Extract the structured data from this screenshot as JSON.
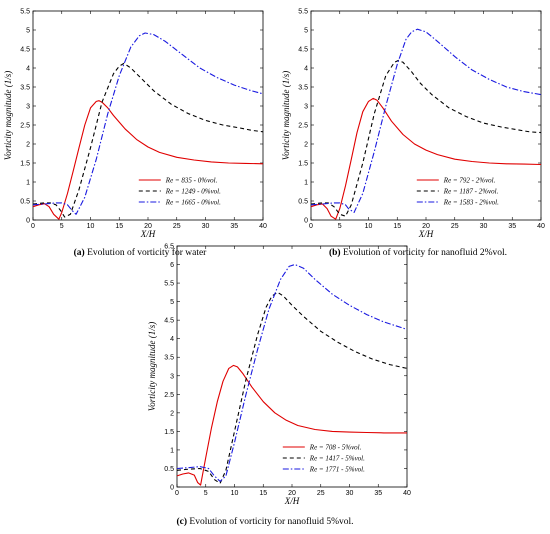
{
  "chart_data": [
    {
      "type": "line",
      "panel_label": "(a)",
      "caption": "Evolution of vorticity for water",
      "xlabel": "X/H",
      "ylabel": "Vorticity magnitude (1/s)",
      "xlim": [
        0,
        40
      ],
      "ylim": [
        0,
        5.5
      ],
      "xticks": [
        0,
        5,
        10,
        15,
        20,
        25,
        30,
        35,
        40
      ],
      "yticks": [
        0,
        0.5,
        1,
        1.5,
        2,
        2.5,
        3,
        3.5,
        4,
        4.5,
        5,
        5.5
      ],
      "legend_position": "lower-right",
      "series": [
        {
          "name": "Re = 835 - 0%vol.",
          "color": "#e00000",
          "dash": "solid",
          "x": [
            0,
            1,
            2,
            2.8,
            3.6,
            4.5,
            5,
            6,
            7,
            8,
            9,
            10,
            11,
            11.5,
            12,
            13,
            14,
            16,
            18,
            20,
            22,
            25,
            28,
            31,
            34,
            37,
            40
          ],
          "y": [
            0.35,
            0.4,
            0.43,
            0.35,
            0.15,
            0.02,
            0.2,
            0.7,
            1.3,
            1.9,
            2.5,
            2.95,
            3.12,
            3.14,
            3.1,
            2.95,
            2.75,
            2.4,
            2.12,
            1.92,
            1.78,
            1.65,
            1.58,
            1.53,
            1.5,
            1.49,
            1.48
          ]
        },
        {
          "name": "Re = 1249 - 0%vol.",
          "color": "#000000",
          "dash": "dashed",
          "x": [
            0,
            2,
            3,
            4,
            4.8,
            5.5,
            6.5,
            8,
            10,
            12,
            14,
            15,
            15.8,
            17,
            19,
            21,
            24,
            27,
            30,
            33,
            36,
            38,
            40
          ],
          "y": [
            0.42,
            0.45,
            0.45,
            0.4,
            0.25,
            0.08,
            0.15,
            0.8,
            1.9,
            3.1,
            3.85,
            4.05,
            4.12,
            4.0,
            3.7,
            3.4,
            3.05,
            2.8,
            2.62,
            2.5,
            2.42,
            2.36,
            2.32
          ]
        },
        {
          "name": "Re = 1665 - 0%vol.",
          "color": "#1a1ae0",
          "dash": "dashdot",
          "x": [
            0,
            2,
            4,
            5,
            6,
            6.8,
            7.5,
            9,
            11,
            13,
            15,
            17,
            18.5,
            19.5,
            21,
            23,
            26,
            29,
            32,
            35,
            38,
            40
          ],
          "y": [
            0.4,
            0.42,
            0.45,
            0.45,
            0.4,
            0.25,
            0.15,
            0.6,
            1.6,
            2.8,
            3.8,
            4.55,
            4.85,
            4.92,
            4.88,
            4.7,
            4.35,
            4.0,
            3.75,
            3.55,
            3.4,
            3.32
          ]
        }
      ]
    },
    {
      "type": "line",
      "panel_label": "(b)",
      "caption": "Evolution of vorticity for nanofluid 2%vol.",
      "xlabel": "X/H",
      "ylabel": "Vorticity magnitude (1/s)",
      "xlim": [
        0,
        40
      ],
      "ylim": [
        0,
        5.5
      ],
      "xticks": [
        0,
        5,
        10,
        15,
        20,
        25,
        30,
        35,
        40
      ],
      "yticks": [
        0,
        0.5,
        1,
        1.5,
        2,
        2.5,
        3,
        3.5,
        4,
        4.5,
        5,
        5.5
      ],
      "legend_position": "lower-right",
      "series": [
        {
          "name": "Re = 792 - 2%vol.",
          "color": "#e00000",
          "dash": "solid",
          "x": [
            0,
            1,
            2,
            2.8,
            3.5,
            4.3,
            5,
            6,
            7,
            8,
            9,
            10,
            10.8,
            11.5,
            12.5,
            14,
            16,
            18,
            20,
            22,
            25,
            28,
            31,
            34,
            37,
            40
          ],
          "y": [
            0.35,
            0.4,
            0.42,
            0.3,
            0.1,
            0.02,
            0.3,
            0.9,
            1.6,
            2.3,
            2.85,
            3.12,
            3.2,
            3.15,
            2.95,
            2.6,
            2.25,
            2.0,
            1.84,
            1.72,
            1.6,
            1.54,
            1.5,
            1.48,
            1.47,
            1.46
          ]
        },
        {
          "name": "Re = 1187 - 2%vol.",
          "color": "#000000",
          "dash": "dashed",
          "x": [
            0,
            2,
            3,
            4,
            5,
            6,
            7,
            9,
            11,
            13,
            14.5,
            15.2,
            16,
            17.5,
            19,
            21,
            24,
            27,
            30,
            33,
            36,
            38,
            40
          ],
          "y": [
            0.42,
            0.45,
            0.45,
            0.35,
            0.15,
            0.1,
            0.4,
            1.5,
            2.8,
            3.8,
            4.15,
            4.2,
            4.15,
            3.9,
            3.6,
            3.3,
            2.95,
            2.72,
            2.55,
            2.45,
            2.37,
            2.32,
            2.3
          ]
        },
        {
          "name": "Re = 1583 - 2%vol.",
          "color": "#1a1ae0",
          "dash": "dashdot",
          "x": [
            0,
            2,
            4,
            5,
            6,
            6.5,
            7.5,
            9,
            11,
            13,
            15,
            16.5,
            17.5,
            18.5,
            20,
            22,
            25,
            28,
            31,
            34,
            37,
            40
          ],
          "y": [
            0.4,
            0.42,
            0.45,
            0.45,
            0.4,
            0.3,
            0.2,
            0.7,
            1.8,
            3.0,
            4.1,
            4.75,
            4.95,
            5.02,
            4.95,
            4.7,
            4.3,
            3.95,
            3.7,
            3.5,
            3.38,
            3.3
          ]
        }
      ]
    },
    {
      "type": "line",
      "panel_label": "(c)",
      "caption": "Evolution of vorticity for nanofluid 5%vol.",
      "xlabel": "X/H",
      "ylabel": "Vorticity magnitude (1/s)",
      "xlim": [
        0,
        40
      ],
      "ylim": [
        0,
        6.5
      ],
      "xticks": [
        0,
        5,
        10,
        15,
        20,
        25,
        30,
        35,
        40
      ],
      "yticks": [
        0,
        0.5,
        1,
        1.5,
        2,
        2.5,
        3,
        3.5,
        4,
        4.5,
        5,
        5.5,
        6,
        6.5
      ],
      "legend_position": "lower-right",
      "series": [
        {
          "name": "Re = 708 - 5%vol.",
          "color": "#e00000",
          "dash": "solid",
          "x": [
            0,
            1,
            2,
            3,
            3.6,
            4.1,
            5,
            6,
            7,
            8,
            9,
            9.8,
            10.5,
            11.5,
            13,
            15,
            17,
            19,
            21,
            24,
            27,
            30,
            33,
            36,
            40
          ],
          "y": [
            0.3,
            0.35,
            0.38,
            0.32,
            0.12,
            0.05,
            0.8,
            1.6,
            2.3,
            2.85,
            3.2,
            3.28,
            3.24,
            3.05,
            2.7,
            2.3,
            2.0,
            1.8,
            1.66,
            1.55,
            1.5,
            1.48,
            1.47,
            1.46,
            1.46
          ]
        },
        {
          "name": "Re = 1417 - 5%vol.",
          "color": "#000000",
          "dash": "dashed",
          "x": [
            0,
            2,
            4,
            5.5,
            6.5,
            7.5,
            8.5,
            10,
            12,
            14,
            15.5,
            16.5,
            17.5,
            18.5,
            20,
            22,
            25,
            28,
            31,
            34,
            37,
            40
          ],
          "y": [
            0.45,
            0.48,
            0.5,
            0.42,
            0.2,
            0.1,
            0.45,
            1.5,
            2.9,
            4.1,
            4.85,
            5.15,
            5.25,
            5.15,
            4.9,
            4.6,
            4.2,
            3.9,
            3.65,
            3.45,
            3.3,
            3.2
          ]
        },
        {
          "name": "Re = 1771 - 5%vol.",
          "color": "#1a1ae0",
          "dash": "dashdot",
          "x": [
            0,
            2,
            4,
            5.5,
            6.5,
            7.5,
            8.5,
            10,
            12,
            14,
            16,
            18,
            19.5,
            20.5,
            22,
            24,
            27,
            30,
            33,
            36,
            40
          ],
          "y": [
            0.5,
            0.52,
            0.55,
            0.5,
            0.3,
            0.15,
            0.3,
            1.2,
            2.5,
            3.7,
            4.8,
            5.6,
            5.95,
            6.0,
            5.9,
            5.6,
            5.2,
            4.9,
            4.65,
            4.45,
            4.25
          ]
        }
      ]
    }
  ]
}
